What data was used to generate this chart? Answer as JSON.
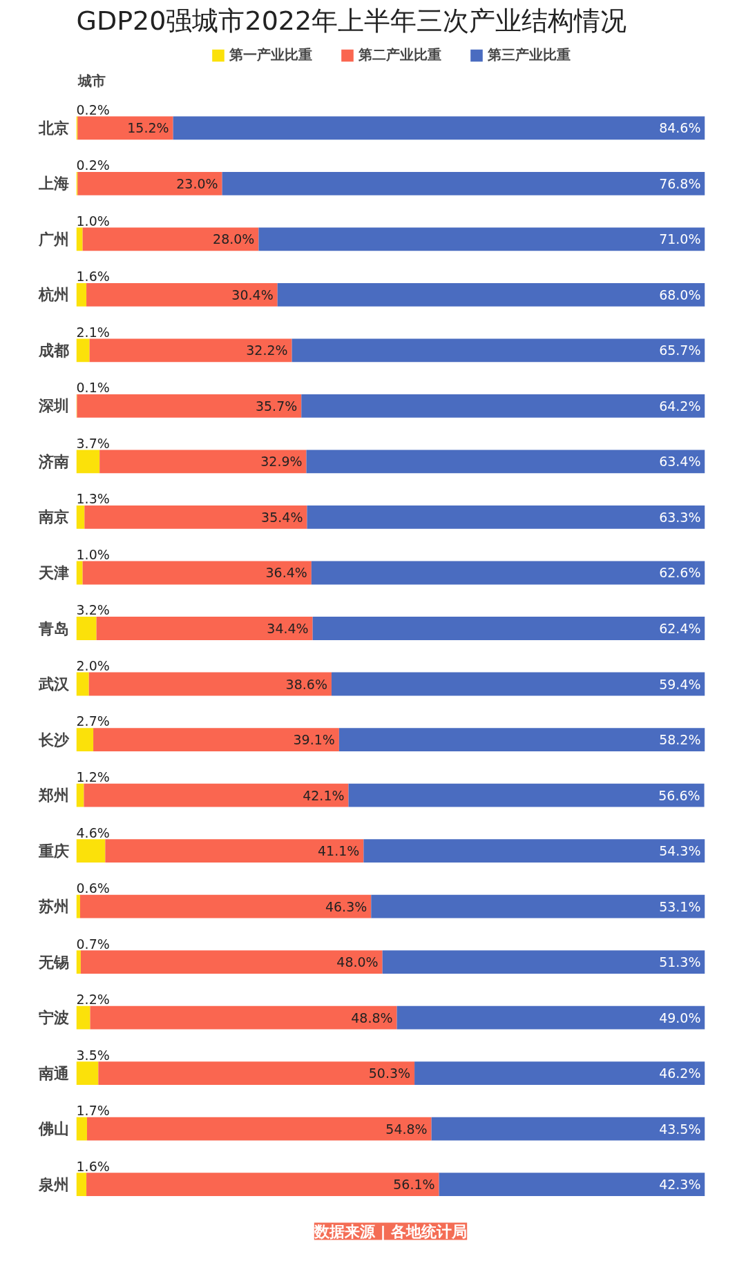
{
  "chart_data": {
    "type": "bar",
    "orientation": "horizontal",
    "stacked": true,
    "title": "GDP20强城市2022年上半年三次产业结构情况",
    "ylabel": "城市",
    "categories": [
      "北京",
      "上海",
      "广州",
      "杭州",
      "成都",
      "深圳",
      "济南",
      "南京",
      "天津",
      "青岛",
      "武汉",
      "长沙",
      "郑州",
      "重庆",
      "苏州",
      "无锡",
      "宁波",
      "南通",
      "佛山",
      "泉州"
    ],
    "series": [
      {
        "name": "第一产业比重",
        "color": "#fbe10a",
        "values": [
          0.2,
          0.2,
          1.0,
          1.6,
          2.1,
          0.1,
          3.7,
          1.3,
          1.0,
          3.2,
          2.0,
          2.7,
          1.2,
          4.6,
          0.6,
          0.7,
          2.2,
          3.5,
          1.7,
          1.6
        ],
        "value_labels": [
          "0.2%",
          "0.2%",
          "1.0%",
          "1.6%",
          "2.1%",
          "0.1%",
          "3.7%",
          "1.3%",
          "1.0%",
          "3.2%",
          "2.0%",
          "2.7%",
          "1.2%",
          "4.6%",
          "0.6%",
          "0.7%",
          "2.2%",
          "3.5%",
          "1.7%",
          "1.6%"
        ]
      },
      {
        "name": "第二产业比重",
        "color": "#fa6650",
        "values": [
          15.2,
          23.0,
          28.0,
          30.4,
          32.2,
          35.7,
          32.9,
          35.4,
          36.4,
          34.4,
          38.6,
          39.1,
          42.1,
          41.1,
          46.3,
          48.0,
          48.8,
          50.3,
          54.8,
          56.1
        ],
        "value_labels": [
          "15.2%",
          "23.0%",
          "28.0%",
          "30.4%",
          "32.2%",
          "35.7%",
          "32.9%",
          "35.4%",
          "36.4%",
          "34.4%",
          "38.6%",
          "39.1%",
          "42.1%",
          "41.1%",
          "46.3%",
          "48.0%",
          "48.8%",
          "50.3%",
          "54.8%",
          "56.1%"
        ]
      },
      {
        "name": "第三产业比重",
        "color": "#4a6cc0",
        "values": [
          84.6,
          76.8,
          71.0,
          68.0,
          65.7,
          64.2,
          63.4,
          63.3,
          62.6,
          62.4,
          59.4,
          58.2,
          56.6,
          54.3,
          53.1,
          51.3,
          49.0,
          46.2,
          43.5,
          42.3
        ],
        "value_labels": [
          "84.6%",
          "76.8%",
          "71.0%",
          "68.0%",
          "65.7%",
          "64.2%",
          "63.4%",
          "63.3%",
          "62.6%",
          "62.4%",
          "59.4%",
          "58.2%",
          "56.6%",
          "54.3%",
          "53.1%",
          "51.3%",
          "49.0%",
          "46.2%",
          "43.5%",
          "42.3%"
        ]
      }
    ],
    "legend": "top",
    "grid": false,
    "tick_labels": "y",
    "annotations": [
      "数据来源 | 各地统计局"
    ]
  }
}
